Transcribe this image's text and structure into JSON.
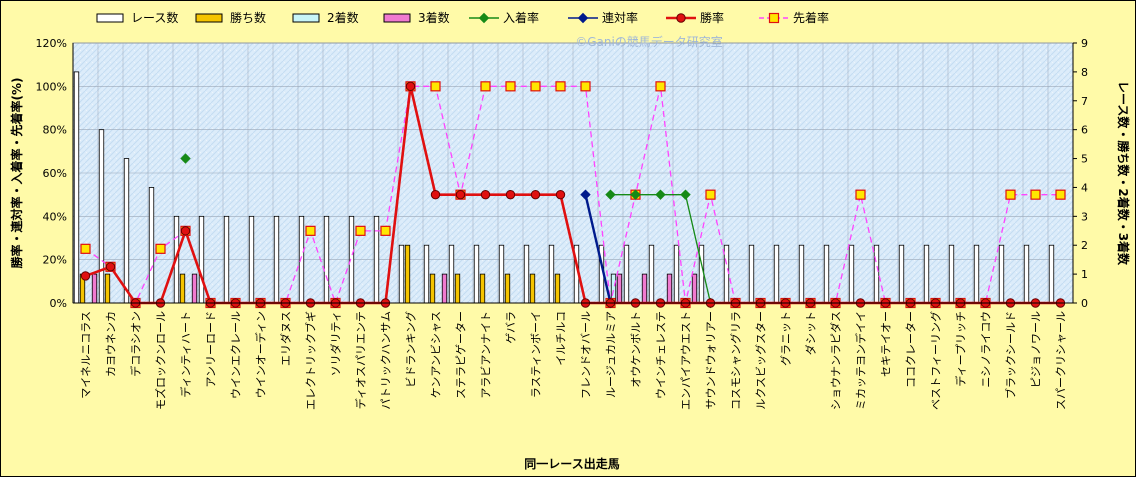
{
  "chart_data": {
    "type": "bar",
    "watermark": "©Ganiの競馬データ研究室",
    "xlabel": "同一レース出走馬",
    "ylabel_left": "勝率・連対率・入着率・先着率(%)",
    "ylabel_right": "レース数・勝ち数・2着数・3着数",
    "ylim_left": [
      0,
      120
    ],
    "ylim_right": [
      0,
      9
    ],
    "yticks_left": [
      "0%",
      "20%",
      "40%",
      "60%",
      "80%",
      "100%",
      "120%"
    ],
    "yticks_right": [
      "0",
      "1",
      "2",
      "3",
      "4",
      "5",
      "6",
      "7",
      "8",
      "9"
    ],
    "grid": true,
    "legend_position": "top",
    "categories": [
      "マイネルニコラス",
      "カヨウネンカ",
      "デコラシオン",
      "モズロックンロール",
      "ディンティハート",
      "アンリーロード",
      "ウインエクレール",
      "ウインオーディン",
      "エリダヌス",
      "エレクトリックブギ",
      "ソリダリティ",
      "ディオスパリエンテ",
      "パトリックハンサム",
      "ビドランキング",
      "ケンアンビシャス",
      "ステラピゲーター",
      "アラビアンナイト",
      "ゲバラ",
      "ラスティンボーイ",
      "イルチルコ",
      "フレンドオバール",
      "ルージュカルミア",
      "オウケンボルト",
      "ウインチェレステ",
      "エンパイアウエスト",
      "サウンドウォリアー",
      "コスモシャングリラ",
      "ルクスビッグスター",
      "グラニット",
      "ダシット",
      "ショウナンラピダス",
      "ミカッテヨンデイイ",
      "セキテイオー",
      "ココクレーター",
      "ベストフィーリング",
      "ディープリッチ",
      "ニシノライコウ",
      "ブラックシールド",
      "ピジョノワール",
      "スパークリシャール"
    ],
    "series": [
      {
        "name": "レース数",
        "kind": "bar",
        "axis": "right",
        "color": "#ffffff",
        "values": [
          8,
          6,
          5,
          4,
          3,
          3,
          3,
          3,
          3,
          3,
          3,
          3,
          3,
          2,
          2,
          2,
          2,
          2,
          2,
          2,
          2,
          2,
          2,
          2,
          2,
          2,
          2,
          2,
          2,
          2,
          2,
          2,
          2,
          2,
          2,
          2,
          2,
          2,
          2,
          2
        ]
      },
      {
        "name": "勝ち数",
        "kind": "bar",
        "axis": "right",
        "color": "#f5c400",
        "values": [
          1,
          1,
          0,
          0,
          1,
          0,
          0,
          0,
          0,
          0,
          0,
          0,
          0,
          2,
          1,
          1,
          1,
          1,
          1,
          1,
          0,
          0,
          0,
          0,
          0,
          0,
          0,
          0,
          0,
          0,
          0,
          0,
          0,
          0,
          0,
          0,
          0,
          0,
          0,
          0
        ]
      },
      {
        "name": "2着数",
        "kind": "bar",
        "axis": "right",
        "color": "#c8f5f8",
        "values": [
          0,
          0,
          0,
          0,
          0,
          0,
          0,
          0,
          0,
          0,
          0,
          0,
          0,
          0,
          0,
          0,
          0,
          0,
          0,
          0,
          0,
          1,
          0,
          0,
          0,
          0,
          0,
          0,
          0,
          0,
          0,
          0,
          0,
          0,
          0,
          0,
          0,
          0,
          0,
          0
        ]
      },
      {
        "name": "3着数",
        "kind": "bar",
        "axis": "right",
        "color": "#f07ad0",
        "values": [
          1,
          0,
          0,
          0,
          1,
          0,
          0,
          0,
          0,
          0,
          0,
          0,
          0,
          0,
          1,
          0,
          0,
          0,
          0,
          0,
          0,
          1,
          1,
          1,
          1,
          0,
          0,
          0,
          0,
          0,
          0,
          0,
          0,
          0,
          0,
          0,
          0,
          0,
          0,
          0
        ]
      },
      {
        "name": "入着率",
        "kind": "line",
        "axis": "left",
        "color": "#168a16",
        "marker": "diamond",
        "values": [
          null,
          null,
          null,
          null,
          66.7,
          null,
          null,
          null,
          null,
          null,
          null,
          null,
          null,
          null,
          null,
          null,
          null,
          null,
          null,
          null,
          null,
          50,
          50,
          50,
          50,
          0,
          null,
          null,
          null,
          null,
          null,
          null,
          null,
          null,
          null,
          null,
          null,
          null,
          null,
          null
        ]
      },
      {
        "name": "連対率",
        "kind": "line",
        "axis": "left",
        "color": "#001a8c",
        "marker": "diamond",
        "values": [
          null,
          null,
          null,
          null,
          null,
          null,
          null,
          null,
          null,
          null,
          null,
          null,
          null,
          null,
          null,
          null,
          null,
          null,
          null,
          null,
          50,
          0,
          null,
          null,
          null,
          null,
          null,
          null,
          null,
          null,
          null,
          null,
          null,
          null,
          null,
          null,
          null,
          null,
          null,
          null
        ]
      },
      {
        "name": "勝率",
        "kind": "line",
        "axis": "left",
        "color": "#e01010",
        "marker": "circle",
        "values": [
          12.5,
          16.7,
          0,
          0,
          33.3,
          0,
          0,
          0,
          0,
          0,
          0,
          0,
          0,
          100,
          50,
          50,
          50,
          50,
          50,
          50,
          0,
          0,
          0,
          0,
          0,
          0,
          0,
          0,
          0,
          0,
          0,
          0,
          0,
          0,
          0,
          0,
          0,
          0,
          0,
          0
        ]
      },
      {
        "name": "先着率",
        "kind": "line",
        "axis": "left",
        "color": "#ff44ff",
        "marker": "square",
        "dashed": true,
        "values": [
          25,
          16.7,
          0,
          25,
          33.3,
          0,
          0,
          0,
          0,
          33.3,
          0,
          33.3,
          33.3,
          100,
          100,
          50,
          100,
          100,
          100,
          100,
          100,
          0,
          50,
          100,
          0,
          50,
          0,
          0,
          0,
          0,
          0,
          50,
          0,
          0,
          0,
          0,
          0,
          50,
          50,
          50
        ]
      }
    ]
  }
}
